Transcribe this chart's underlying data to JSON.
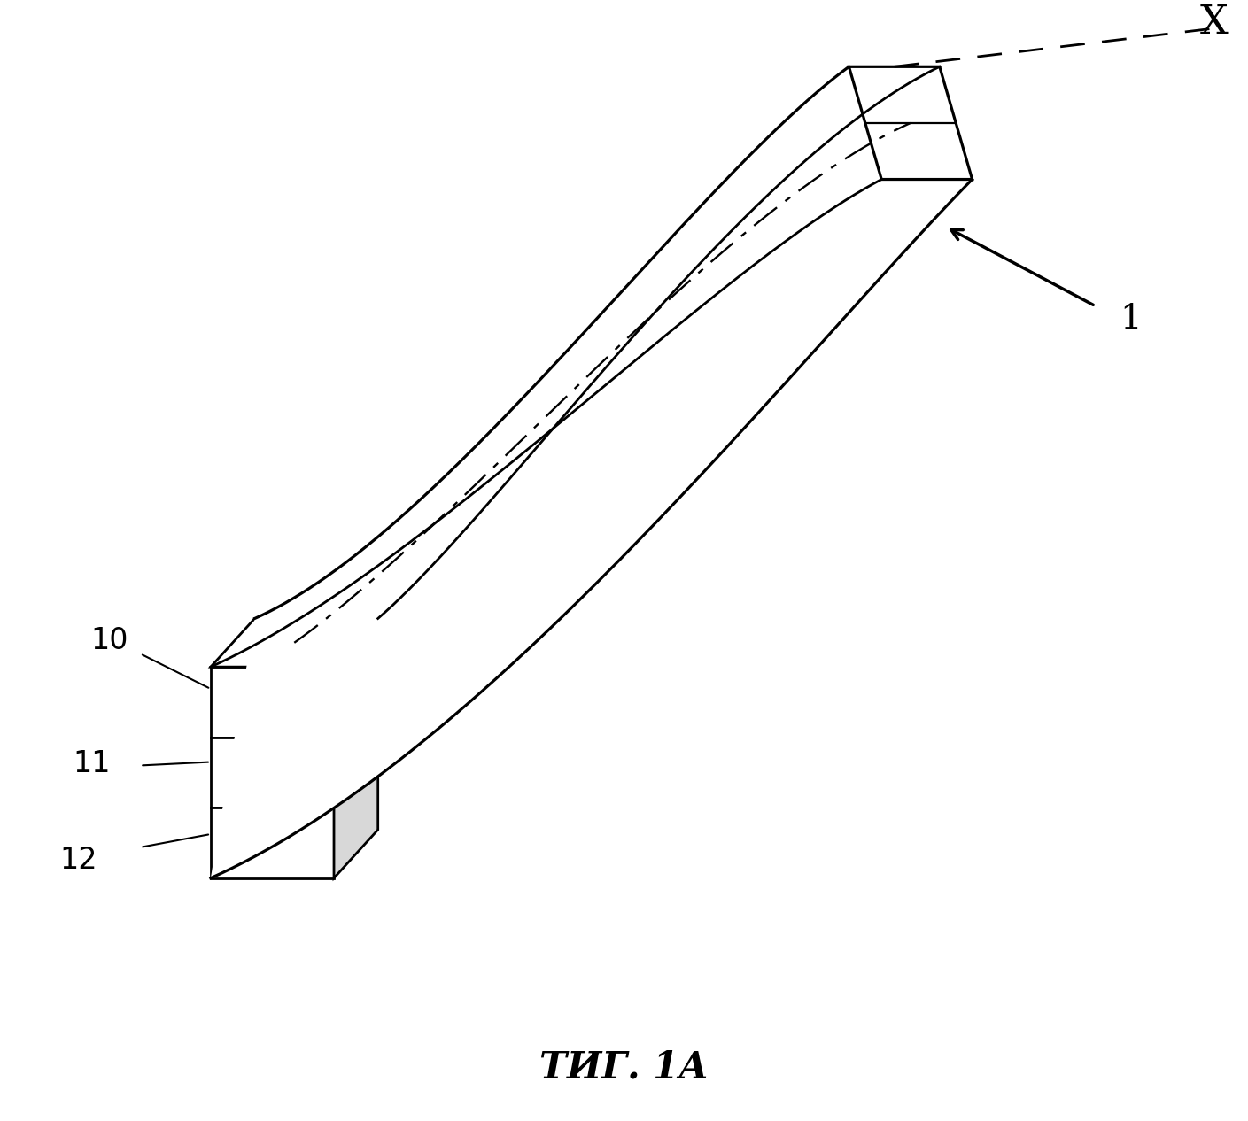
{
  "bg_color": "#ffffff",
  "line_color": "#000000",
  "caption": "ΤИГ. 1А",
  "label_1": "1",
  "label_10": "10",
  "label_11": "11",
  "label_12": "12",
  "label_X": "X",
  "font_size_caption": 30,
  "font_size_labels": 24
}
